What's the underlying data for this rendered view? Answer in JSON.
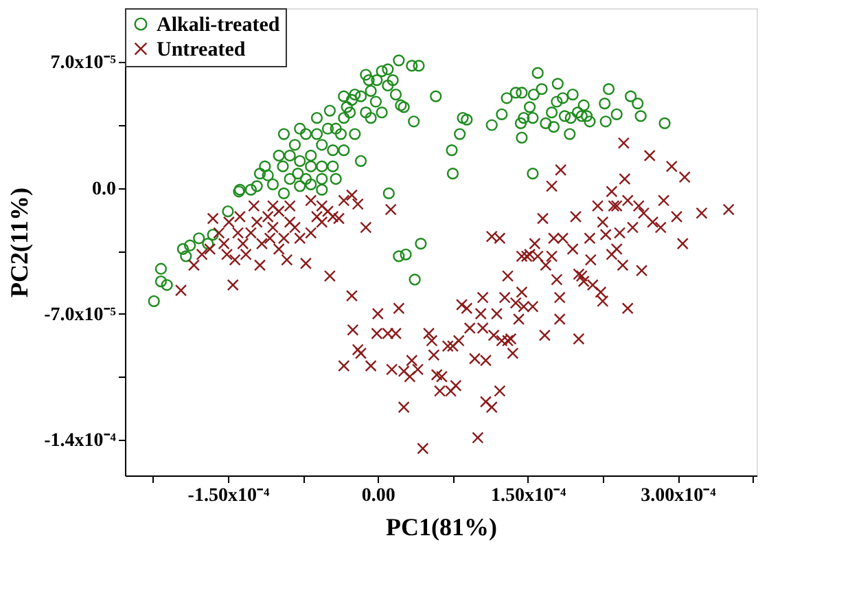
{
  "chart_data": {
    "type": "scatter",
    "xlabel": "PC1(81%)",
    "ylabel": "PC2(11%)",
    "xlim": [
      -0.000253,
      0.000379
    ],
    "ylim": [
      -0.00016,
      0.0001
    ],
    "xticks": [
      {
        "value": -0.000225,
        "label": null
      },
      {
        "value": -0.00015,
        "label": "-1.50x10⁻⁴"
      },
      {
        "value": -7.5e-05,
        "label": null
      },
      {
        "value": 0,
        "label": "0.00"
      },
      {
        "value": 7.5e-05,
        "label": null
      },
      {
        "value": 0.00015,
        "label": "1.50x10⁻⁴"
      },
      {
        "value": 0.000225,
        "label": null
      },
      {
        "value": 0.0003,
        "label": "3.00x10⁻⁴"
      },
      {
        "value": 0.000375,
        "label": null
      }
    ],
    "yticks": [
      {
        "value": -0.00014,
        "label": "-1.4x10⁻⁴"
      },
      {
        "value": -0.000105,
        "label": null
      },
      {
        "value": -7e-05,
        "label": "-7.0x10⁻⁵"
      },
      {
        "value": -3.5e-05,
        "label": null
      },
      {
        "value": 0,
        "label": "0.0"
      },
      {
        "value": 3.5e-05,
        "label": null
      },
      {
        "value": 7e-05,
        "label": "7.0x10⁻⁵"
      }
    ],
    "grid": false,
    "legend": "top left",
    "series": [
      {
        "name": "Alkali-treated",
        "color": "#1f8c1f",
        "marker": "circle",
        "x": [
          -0.000224,
          -0.000217,
          -0.000217,
          -0.000211,
          -0.000195,
          -0.000192,
          -0.000188,
          -0.000179,
          -0.00017,
          -0.000165,
          -0.00015,
          -0.000138,
          -0.000139,
          -0.000127,
          -0.000118,
          -0.00011,
          -9.9e-05,
          -9.5e-05,
          -8.8e-05,
          -8.3e-05,
          -7.8e-05,
          -7.2e-05,
          -6.7e-05,
          -6.1e-05,
          -5.6e-05,
          -5e-05,
          -4.5e-05,
          -4.2e-05,
          -3.7e-05,
          -3.4e-05,
          -3.1e-05,
          -2.6e-05,
          -2.3e-05,
          -1.7e-05,
          -1.2e-05,
          -9e-06,
          -7e-06,
          -1e-06,
          4e-06,
          1e-05,
          1.5e-05,
          2.1e-05,
          1.8e-05,
          2.3e-05,
          2.6e-05,
          3.6e-05,
          3.4e-05,
          4.1e-05,
          -1.7e-05,
          -4.5e-05,
          -6.7e-05,
          -7.8e-05,
          -9.4e-05,
          -5.6e-05,
          -6.7e-05,
          -8.8e-05,
          -0.000105,
          -0.000121,
          -0.000113,
          -9.4e-05,
          -7.8e-05,
          -6.1e-05,
          -4.8e-05,
          -3.4e-05,
          -2.3e-05,
          -1.2e-05,
          -2e-06,
          1e-05,
          4e-06,
          -7e-06,
          -2.8e-05,
          -4.2e-05,
          -5.6e-05,
          -8e-05,
          -7.2e-05,
          -5.6e-05,
          -3.4e-05,
          5.8e-05,
          7.4e-05,
          7.5e-05,
          8.2e-05,
          8.5e-05,
          8.9e-05,
          0.000114,
          0.000124,
          0.000129,
          0.000138,
          0.000144,
          0.000144,
          0.000143,
          0.000146,
          0.000152,
          0.000155,
          0.000156,
          0.00016,
          0.000164,
          0.000168,
          0.000174,
          0.000176,
          0.000179,
          0.00018,
          0.000185,
          0.000187,
          0.000192,
          0.000193,
          0.000195,
          0.0002,
          0.000204,
          0.000206,
          0.000209,
          0.000212,
          0.000227,
          0.000228,
          0.000231,
          0.000239,
          0.000253,
          0.00026,
          0.000263,
          0.000287,
          0.000155,
          1.1e-05,
          2.1e-05,
          2.8e-05,
          4.3e-05,
          3.7e-05
        ],
        "values": [
          -6.3e-05,
          -4.5e-05,
          -5.2e-05,
          -5.4e-05,
          -3.4e-05,
          -3.8e-05,
          -3.2e-05,
          -2.8e-05,
          -3.1e-05,
          -2.6e-05,
          -1.3e-05,
          -1e-06,
          -2e-06,
          -1e-06,
          8e-06,
          7e-06,
          1.8e-05,
          1.2e-05,
          5e-06,
          2.4e-05,
          1.5e-05,
          3e-05,
          1.8e-05,
          3e-05,
          1.2e-05,
          3.3e-05,
          2.1e-05,
          5e-06,
          3e-05,
          3.9e-05,
          4.5e-05,
          4.9e-05,
          3e-05,
          5.1e-05,
          4.2e-05,
          6e-05,
          5.4e-05,
          6e-05,
          6.5e-05,
          6.6e-05,
          6e-05,
          7.1e-05,
          5.2e-05,
          4.6e-05,
          4.5e-05,
          3.7e-05,
          6.8e-05,
          6.8e-05,
          1.5e-05,
          1.2e-05,
          2e-06,
          1e-06,
          -3e-06,
          -1e-06,
          1.2e-05,
          1.8e-05,
          2e-06,
          1e-06,
          1.2e-05,
          3e-05,
          3.3e-05,
          3.9e-05,
          4.3e-05,
          5.1e-05,
          5.2e-05,
          6.3e-05,
          4.8e-05,
          5.7e-05,
          4.2e-05,
          3.9e-05,
          4.2e-05,
          3.3e-05,
          2.4e-05,
          8e-06,
          5e-06,
          5e-06,
          2.1e-05,
          5.1e-05,
          2.1e-05,
          8e-06,
          3e-05,
          3.9e-05,
          3.8e-05,
          3.5e-05,
          4.1e-05,
          5e-05,
          5.3e-05,
          5.3e-05,
          2.8e-05,
          3.6e-05,
          3.9e-05,
          4.5e-05,
          3.9e-05,
          5.2e-05,
          6.4e-05,
          5.5e-05,
          3.6e-05,
          4.2e-05,
          3.4e-05,
          4.8e-05,
          5.8e-05,
          5e-05,
          4e-05,
          3e-05,
          3.9e-05,
          5.2e-05,
          4.2e-05,
          4e-05,
          4.6e-05,
          4e-05,
          3.7e-05,
          4.7e-05,
          3.7e-05,
          5.5e-05,
          4.1e-05,
          5.1e-05,
          4.7e-05,
          4e-05,
          3.6e-05,
          8e-06,
          -3e-06,
          -3.8e-05,
          -3.7e-05,
          -3.1e-05,
          -5.1e-05
        ]
      },
      {
        "name": "Untreated",
        "color": "#8b1a1a",
        "marker": "cross",
        "x": [
          -0.000197,
          -0.000184,
          -0.000176,
          -0.000165,
          -0.000159,
          -0.000154,
          -0.000145,
          -0.000143,
          -0.00014,
          -0.000135,
          -0.000127,
          -0.000121,
          -0.000118,
          -0.00011,
          -0.000105,
          -9.9e-05,
          -9.4e-05,
          -9.1e-05,
          -8.8e-05,
          -8.3e-05,
          -7.8e-05,
          -7.2e-05,
          -6.7e-05,
          -6.1e-05,
          -5.6e-05,
          -5e-05,
          -4.5e-05,
          -3.9e-05,
          -3.4e-05,
          -2.6e-05,
          -2e-05,
          -1.2e-05,
          -0.000132,
          -0.000116,
          -0.000108,
          -9.9e-05,
          -0.000151,
          -0.000124,
          -0.000105,
          -8.8e-05,
          -6.7e-05,
          -5.6e-05,
          -4.8e-05,
          1.3e-05,
          -0.000168,
          -0.000138,
          -0.000149,
          -2.6e-05,
          -2.5e-05,
          -3.4e-05,
          -2e-05,
          -1.7e-05,
          -7e-06,
          0.0,
          -1e-06,
          1e-05,
          1.8e-05,
          2.1e-05,
          1.4e-05,
          2.6e-05,
          3.2e-05,
          2.6e-05,
          4e-05,
          4.5e-05,
          5.1e-05,
          5.4e-05,
          5.6e-05,
          6.2e-05,
          6.4e-05,
          7e-05,
          7.3e-05,
          7.5e-05,
          8.1e-05,
          8.4e-05,
          8.9e-05,
          9.2e-05,
          0.0001,
          0.000103,
          0.000105,
          0.000108,
          0.000108,
          0.000114,
          0.000116,
          0.000119,
          0.000122,
          0.000124,
          0.000127,
          0.00013,
          0.000133,
          0.000138,
          0.000141,
          0.000144,
          0.000146,
          0.000149,
          0.000155,
          0.000157,
          0.00016,
          0.000165,
          0.000167,
          0.000174,
          0.000174,
          0.000176,
          0.000179,
          0.000182,
          0.000182,
          0.000183,
          0.000185,
          0.000198,
          0.000201,
          0.000204,
          0.000206,
          0.000212,
          0.000213,
          0.000215,
          0.00022,
          0.000223,
          0.000225,
          0.000228,
          0.000234,
          0.000236,
          0.000239,
          0.000242,
          0.000245,
          0.000246,
          0.000247,
          0.00025,
          0.000255,
          0.000261,
          0.000264,
          0.000266,
          0.000272,
          0.000275,
          0.000283,
          0.000286,
          0.000294,
          0.000299,
          0.000305,
          0.000307,
          0.000324,
          0.000351,
          0.000114,
          0.000122,
          0.000105,
          0.00013,
          0.000144,
          0.000152,
          0.000195,
          0.000225,
          0.000239,
          0.00025,
          0.000168,
          0.000201,
          0.000234,
          0.000135,
          9.7e-05,
          7.8e-05,
          5.9e-05,
          3.4e-05
        ],
        "values": [
          -5.7e-05,
          -4.3e-05,
          -3.7e-05,
          -1.7e-05,
          -2.5e-05,
          -3.1e-05,
          -5.4e-05,
          -4e-05,
          -2.5e-05,
          -3.1e-05,
          -2.5e-05,
          -1.9e-05,
          -4.3e-05,
          -1.6e-05,
          -2.2e-05,
          -1.3e-05,
          -2.8e-05,
          -4e-05,
          -1.9e-05,
          -2.2e-05,
          -2.8e-05,
          -4.2e-05,
          -2.5e-05,
          -1.6e-05,
          -1e-05,
          -1.3e-05,
          -1.6e-05,
          -1.7e-05,
          -7e-06,
          -4e-06,
          -9e-06,
          -2.2e-05,
          -3.7e-05,
          -3.1e-05,
          -2.8e-05,
          -3.4e-05,
          -3.7e-05,
          -1e-05,
          -1e-05,
          -1e-05,
          -7e-06,
          -1.9e-05,
          -4.9e-05,
          -1.2e-05,
          -3.4e-05,
          -1.6e-05,
          -1.9e-05,
          -6e-05,
          -7.9e-05,
          -9.9e-05,
          -9e-05,
          -9.2e-05,
          -9.9e-05,
          -7e-05,
          -8.1e-05,
          -8.1e-05,
          -8.1e-05,
          -6.7e-05,
          -0.000101,
          -0.000102,
          -0.000105,
          -0.000122,
          -0.000101,
          -0.000145,
          -8.1e-05,
          -8.5e-05,
          -9.3e-05,
          -0.000113,
          -0.000105,
          -8.8e-05,
          -0.000113,
          -8.8e-05,
          -8.5e-05,
          -6.5e-05,
          -6.7e-05,
          -7.8e-05,
          -0.000139,
          -7e-05,
          -7.8e-05,
          -9.6e-05,
          -0.000119,
          -0.000122,
          -8.2e-05,
          -7e-05,
          -0.000113,
          -8.5e-05,
          -6.1e-05,
          -8.5e-05,
          -8.4e-05,
          -6.4e-05,
          -7.3e-05,
          -5.8e-05,
          -6.6e-05,
          -3.8e-05,
          -6.6e-05,
          -3.1e-05,
          -3.8e-05,
          -1.7e-05,
          -8.2e-05,
          1e-06,
          -3.8e-05,
          -2.8e-05,
          -5.1e-05,
          -6.1e-05,
          -7.3e-05,
          1e-05,
          -2.8e-05,
          -1.6e-05,
          -8.4e-05,
          -4.9e-05,
          -5.2e-05,
          -2.8e-05,
          -4e-05,
          -5.4e-05,
          -1e-05,
          -5.8e-05,
          -6.3e-05,
          -2.6e-05,
          -2e-06,
          -1e-05,
          -3.4e-05,
          -2.5e-05,
          -4.3e-05,
          2.5e-05,
          5e-06,
          -6.7e-05,
          -2.2e-05,
          -1e-05,
          -4.6e-05,
          -1.4e-05,
          1.8e-05,
          -1.9e-05,
          -2.2e-05,
          -7e-06,
          1.2e-05,
          -1.6e-05,
          -3.1e-05,
          6e-06,
          -1.4e-05,
          -1.2e-05,
          -2.7e-05,
          -2.8e-05,
          -6.1e-05,
          -4.9e-05,
          -3.8e-05,
          -3.7e-05,
          -3.4e-05,
          -1.9e-05,
          -1e-05,
          -7e-06,
          -4.3e-05,
          -4.8e-05,
          -3.7e-05,
          -9.2e-05,
          -9.5e-05,
          -0.00011,
          -0.000104,
          -9.6e-05
        ]
      }
    ]
  }
}
